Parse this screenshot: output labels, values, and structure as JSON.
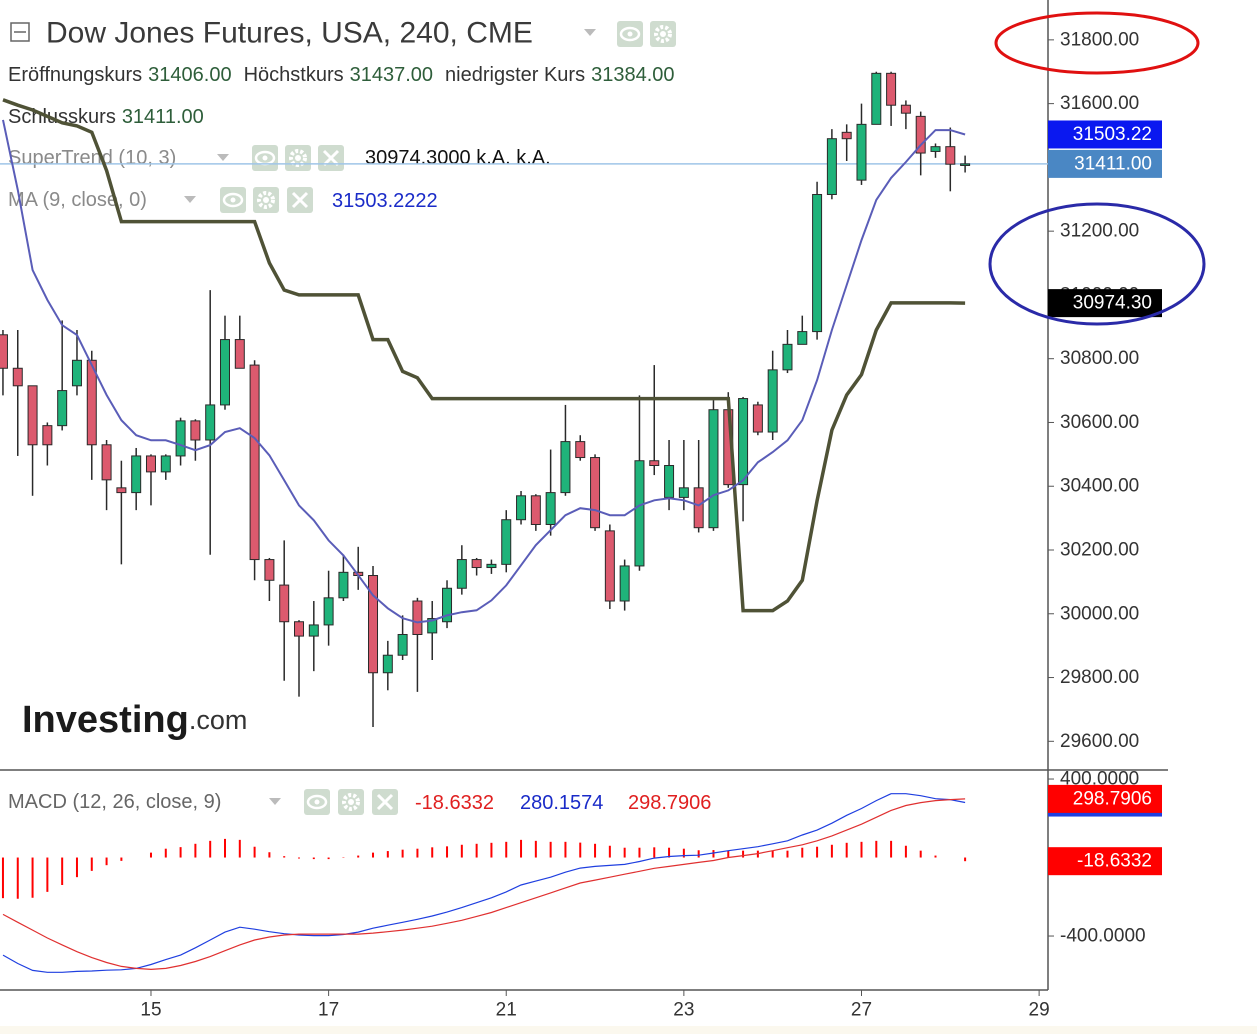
{
  "header": {
    "title": "Dow Jones Futures, USA, 240, CME",
    "ohlc": [
      {
        "label": "Eröffnungskurs",
        "value": "31406.00"
      },
      {
        "label": "Höchstkurs",
        "value": "31437.00"
      },
      {
        "label": "niedrigster Kurs",
        "value": "31384.00"
      },
      {
        "label": "Schlusskurs",
        "value": "31411.00"
      }
    ]
  },
  "indicators": [
    {
      "name": "SuperTrend (10, 3)",
      "value": "30974.3000 k.A. k.A."
    },
    {
      "name": "MA (9, close, 0)",
      "value": "31503.2222"
    }
  ],
  "logo": {
    "brand": "Investing",
    "suffix": ".com"
  },
  "chart_data": [
    {
      "type": "candlestick",
      "categories": [
        null,
        null,
        null,
        null,
        null,
        null,
        null,
        null,
        null,
        null,
        null,
        null,
        null,
        null,
        null,
        null,
        null,
        null,
        null,
        null,
        null,
        null,
        null,
        null,
        null,
        null,
        null,
        null,
        null,
        null,
        null,
        null,
        null,
        null,
        null,
        null,
        null,
        null,
        null,
        null,
        null,
        null,
        null,
        null,
        null,
        null,
        null,
        null,
        null,
        null,
        null,
        null,
        null,
        null,
        null,
        null,
        null,
        null,
        null,
        null,
        null,
        null,
        null,
        null,
        null,
        null
      ],
      "open": [
        30875,
        30770,
        30715,
        30590,
        30590,
        30715,
        30795,
        30530,
        30395,
        30380,
        30495,
        30445,
        30495,
        30605,
        30545,
        30655,
        30860,
        30780,
        30170,
        30090,
        29975,
        29930,
        29965,
        30050,
        30130,
        30120,
        29815,
        29870,
        30040,
        29940,
        29975,
        30080,
        30170,
        30145,
        30155,
        30295,
        30370,
        30280,
        30380,
        30540,
        30490,
        30260,
        30040,
        30150,
        30480,
        30365,
        30365,
        30395,
        30270,
        30640,
        30405,
        30655,
        30570,
        30765,
        30845,
        30885,
        31315,
        31510,
        31360,
        31535,
        31695,
        31595,
        31560,
        31450,
        31465,
        31406
      ],
      "high": [
        30890,
        30890,
        30715,
        30600,
        30920,
        30890,
        30825,
        30545,
        30480,
        30520,
        30500,
        30500,
        30615,
        30610,
        31015,
        30935,
        30935,
        30795,
        30175,
        30230,
        29980,
        30040,
        30135,
        30185,
        30210,
        30150,
        29915,
        29995,
        30050,
        30040,
        30105,
        30215,
        30175,
        30170,
        30325,
        30385,
        30375,
        30515,
        30655,
        30560,
        30500,
        30280,
        30170,
        30685,
        30780,
        30545,
        30545,
        30545,
        30670,
        30695,
        30680,
        30665,
        30825,
        30890,
        30935,
        31355,
        31520,
        31535,
        31600,
        31700,
        31700,
        31610,
        31575,
        31475,
        31525,
        31437
      ],
      "low": [
        30685,
        30495,
        30370,
        30465,
        30575,
        30685,
        30420,
        30325,
        30155,
        30325,
        30340,
        30420,
        30465,
        30480,
        30185,
        30640,
        30770,
        30105,
        30040,
        29790,
        29740,
        29820,
        29900,
        30040,
        30075,
        29645,
        29760,
        29855,
        29755,
        29855,
        29955,
        30060,
        30120,
        30125,
        30130,
        30280,
        30260,
        30245,
        30370,
        30480,
        30260,
        30015,
        30010,
        30135,
        30435,
        30325,
        30325,
        30255,
        30260,
        30395,
        30290,
        30560,
        30545,
        30755,
        30845,
        30860,
        31300,
        31420,
        31345,
        31535,
        31530,
        31520,
        31375,
        31430,
        31325,
        31384
      ],
      "close": [
        30770,
        30715,
        30530,
        30530,
        30700,
        30795,
        30530,
        30420,
        30380,
        30495,
        30445,
        30495,
        30605,
        30545,
        30655,
        30860,
        30770,
        30170,
        30105,
        29975,
        29930,
        29965,
        30050,
        30130,
        30120,
        29815,
        29870,
        29935,
        29935,
        29985,
        30080,
        30170,
        30145,
        30155,
        30295,
        30370,
        30280,
        30380,
        30540,
        30490,
        30270,
        30040,
        30150,
        30480,
        30465,
        30465,
        30395,
        30270,
        30640,
        30405,
        30675,
        30570,
        30765,
        30845,
        30885,
        31315,
        31490,
        31490,
        31535,
        31695,
        31595,
        31570,
        31445,
        31465,
        31410,
        31411
      ],
      "last_label": "31411.00",
      "up_color": "#1fb37a",
      "down_color": "#dc5a6e",
      "last_color": "#4a87c4",
      "last_line_color": "#9fc5e8",
      "supertrend": {
        "color": "#4f5236",
        "badge_color": "#000000",
        "last_label": "30974.30",
        "values": [
          31612,
          31595,
          31580,
          31560,
          31540,
          31530,
          31510,
          31390,
          31230,
          31230,
          31230,
          31230,
          31230,
          31230,
          31230,
          31230,
          31230,
          31230,
          31100,
          31015,
          31000,
          31000,
          31000,
          31000,
          31000,
          30860,
          30860,
          30760,
          30740,
          30675,
          30675,
          30675,
          30675,
          30675,
          30675,
          30675,
          30675,
          30675,
          30675,
          30675,
          30675,
          30675,
          30675,
          30675,
          30675,
          30675,
          30675,
          30675,
          30675,
          30675,
          30010,
          30010,
          30010,
          30040,
          30105,
          30355,
          30576,
          30686,
          30750,
          30890,
          30975,
          30975,
          30975,
          30975,
          30975,
          30974.3
        ]
      },
      "ma": {
        "color": "#5a5db8",
        "badge_color": "#0a18f0",
        "last_label": "31503.22",
        "values": [
          31549,
          31329,
          31078,
          30984,
          30905,
          30874,
          30780,
          30686,
          30607,
          30560,
          30544,
          30544,
          30529,
          30513,
          30529,
          30570,
          30582,
          30551,
          30497,
          30419,
          30340,
          30293,
          30230,
          30183,
          30121,
          30058,
          30017,
          29986,
          29973,
          29979,
          29995,
          30005,
          30011,
          30042,
          30089,
          30152,
          30215,
          30262,
          30309,
          30331,
          30325,
          30309,
          30309,
          30340,
          30356,
          30362,
          30356,
          30340,
          30372,
          30387,
          30419,
          30475,
          30507,
          30544,
          30607,
          30733,
          30890,
          31031,
          31172,
          31298,
          31367,
          31417,
          31470,
          31517,
          31517,
          31503.22
        ]
      },
      "xlim": [
        -0.2,
        70.6
      ],
      "ylim": [
        29510,
        31925
      ],
      "yticks": [
        {
          "value": 29600,
          "label": "29600.00"
        },
        {
          "value": 29800,
          "label": "29800.00"
        },
        {
          "value": 30000,
          "label": "30000.00"
        },
        {
          "value": 30200,
          "label": "30200.00"
        },
        {
          "value": 30400,
          "label": "30400.00"
        },
        {
          "value": 30600,
          "label": "30600.00"
        },
        {
          "value": 30800,
          "label": "30800.00"
        },
        {
          "value": 31000,
          "label": "31000.00"
        },
        {
          "value": 31200,
          "label": "31200.00"
        },
        {
          "value": 31400,
          "label": "31400.00"
        },
        {
          "value": 31600,
          "label": "31600.00"
        },
        {
          "value": 31800,
          "label": "31800.00"
        }
      ],
      "xticks": [
        {
          "value": 10,
          "label": "15"
        },
        {
          "value": 22,
          "label": "17"
        },
        {
          "value": 34,
          "label": "21"
        },
        {
          "value": 46,
          "label": "23"
        },
        {
          "value": 58,
          "label": "27"
        },
        {
          "value": 70,
          "label": "29"
        }
      ]
    },
    {
      "type": "macd",
      "name": "MACD (12, 26, close, 9)",
      "histogram": {
        "color": "#ff0000",
        "last_label": "-18.6332",
        "values": [
          -207,
          -210,
          -205,
          -175,
          -140,
          -100,
          -68,
          -39,
          -17,
          0,
          25,
          45,
          53,
          70,
          85,
          95,
          90,
          55,
          27,
          7,
          -5,
          -8,
          -8,
          -2,
          10,
          25,
          33,
          40,
          45,
          52,
          57,
          65,
          70,
          75,
          80,
          90,
          85,
          80,
          80,
          76,
          70,
          60,
          50,
          50,
          52,
          50,
          45,
          37,
          38,
          35,
          35,
          35,
          35,
          35,
          50,
          55,
          65,
          75,
          80,
          85,
          85,
          60,
          35,
          10,
          0,
          -18.6332
        ]
      },
      "macd": {
        "color": "#1f3fe0",
        "last_label": "280.1574",
        "values": [
          -497,
          -540,
          -575,
          -585,
          -585,
          -580,
          -578,
          -574,
          -572,
          -565,
          -545,
          -520,
          -497,
          -460,
          -420,
          -380,
          -355,
          -365,
          -378,
          -388,
          -395,
          -398,
          -398,
          -392,
          -380,
          -360,
          -345,
          -330,
          -315,
          -298,
          -278,
          -255,
          -230,
          -205,
          -175,
          -140,
          -120,
          -100,
          -75,
          -54,
          -45,
          -40,
          -35,
          -20,
          -3,
          5,
          10,
          12,
          23,
          35,
          45,
          55,
          70,
          85,
          115,
          140,
          175,
          215,
          250,
          290,
          325,
          325,
          315,
          300,
          295,
          280.1574
        ]
      },
      "signal": {
        "color": "#e03030",
        "last_label": "298.7906",
        "values": [
          -290,
          -330,
          -370,
          -410,
          -445,
          -480,
          -510,
          -535,
          -555,
          -565,
          -570,
          -565,
          -550,
          -530,
          -505,
          -475,
          -445,
          -420,
          -405,
          -395,
          -390,
          -390,
          -390,
          -390,
          -390,
          -385,
          -378,
          -370,
          -360,
          -350,
          -335,
          -320,
          -300,
          -280,
          -255,
          -230,
          -205,
          -180,
          -155,
          -130,
          -115,
          -100,
          -85,
          -70,
          -55,
          -45,
          -35,
          -25,
          -15,
          0,
          10,
          20,
          35,
          50,
          65,
          85,
          110,
          140,
          170,
          205,
          240,
          265,
          280,
          290,
          295,
          298.7906
        ]
      },
      "ylim": [
        -675,
        446
      ],
      "yticks": [
        {
          "value": 400,
          "label": "400.0000"
        },
        {
          "value": -400,
          "label": "-400.0000"
        }
      ]
    }
  ]
}
